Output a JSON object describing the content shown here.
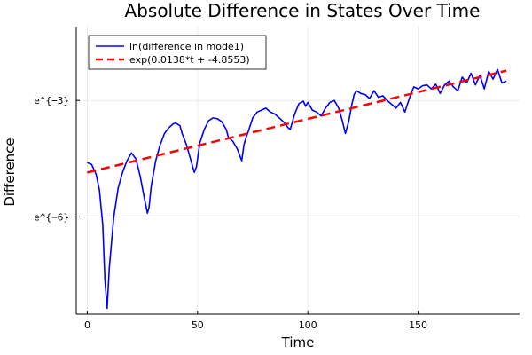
{
  "chart_data": {
    "type": "line",
    "title": "Absolute Difference in States Over Time",
    "xlabel": "Time",
    "ylabel": "Difference",
    "xlim": [
      -5,
      196
    ],
    "ylim": [
      -8.5,
      -1.1
    ],
    "xticks": [
      {
        "value": 0,
        "label": "0"
      },
      {
        "value": 50,
        "label": "50"
      },
      {
        "value": 100,
        "label": "100"
      },
      {
        "value": 150,
        "label": "150"
      }
    ],
    "yticks": [
      {
        "value": -6,
        "label": "e^{−6}"
      },
      {
        "value": -3,
        "label": "e^{−3}"
      }
    ],
    "grid": true,
    "legend_position": "top-left",
    "series": [
      {
        "name": "ln(difference in mode1)",
        "color": "#0000ff",
        "style": "solid",
        "x": [
          0,
          2,
          4,
          5.5,
          7,
          8,
          9,
          10,
          12,
          14,
          16,
          18,
          20,
          22,
          24,
          26,
          27.3,
          28,
          29,
          31,
          33,
          35,
          37,
          39,
          40,
          42,
          43,
          45,
          47,
          48.5,
          49.5,
          51,
          53,
          55,
          57,
          59,
          61,
          63,
          64,
          66,
          68,
          70,
          71,
          72,
          73,
          75,
          77,
          79,
          81,
          83,
          85,
          87,
          89,
          91,
          92,
          94,
          96,
          98,
          99,
          100,
          102,
          104,
          106,
          108,
          110,
          112,
          114,
          115.5,
          117,
          118.5,
          120,
          121,
          122,
          124,
          126,
          128,
          130,
          132,
          134,
          136,
          138,
          140,
          142,
          144,
          146,
          148,
          150,
          152,
          154,
          156,
          158,
          160,
          162,
          164,
          166,
          168,
          170,
          172,
          174,
          176,
          178,
          180,
          182,
          184,
          186,
          188,
          190
        ],
        "values": [
          -4.6,
          -4.65,
          -4.9,
          -5.3,
          -6.2,
          -7.6,
          -8.35,
          -7.3,
          -6.0,
          -5.25,
          -4.85,
          -4.55,
          -4.35,
          -4.5,
          -4.95,
          -5.55,
          -5.9,
          -5.75,
          -5.2,
          -4.55,
          -4.15,
          -3.85,
          -3.7,
          -3.6,
          -3.58,
          -3.65,
          -3.85,
          -4.15,
          -4.55,
          -4.85,
          -4.7,
          -4.1,
          -3.75,
          -3.52,
          -3.45,
          -3.47,
          -3.55,
          -3.75,
          -3.95,
          -4.05,
          -4.25,
          -4.55,
          -4.15,
          -3.95,
          -3.8,
          -3.45,
          -3.3,
          -3.25,
          -3.2,
          -3.3,
          -3.35,
          -3.45,
          -3.55,
          -3.7,
          -3.75,
          -3.35,
          -3.08,
          -3.02,
          -3.15,
          -3.05,
          -3.25,
          -3.3,
          -3.4,
          -3.2,
          -3.05,
          -3.0,
          -3.2,
          -3.5,
          -3.85,
          -3.55,
          -3.1,
          -2.85,
          -2.75,
          -2.82,
          -2.85,
          -2.95,
          -2.75,
          -2.92,
          -2.88,
          -3.0,
          -3.1,
          -3.2,
          -3.05,
          -3.3,
          -2.95,
          -2.65,
          -2.7,
          -2.62,
          -2.6,
          -2.7,
          -2.58,
          -2.82,
          -2.6,
          -2.5,
          -2.65,
          -2.75,
          -2.4,
          -2.55,
          -2.3,
          -2.6,
          -2.35,
          -2.7,
          -2.25,
          -2.45,
          -2.2,
          -2.55,
          -2.5
        ]
      },
      {
        "name": "exp(0.0138*t + -4.8553)",
        "color": "#ff0000",
        "style": "dashed",
        "x": [
          0,
          190
        ],
        "values": [
          -4.8553,
          -2.2333
        ]
      }
    ]
  }
}
